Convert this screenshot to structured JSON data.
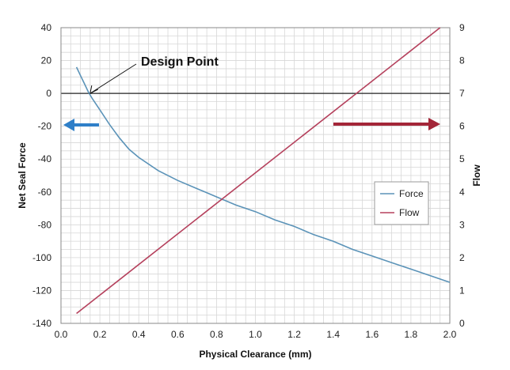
{
  "chart_data": {
    "type": "line",
    "xlabel": "Physical Clearance (mm)",
    "ylabel_left": "Net Seal Force",
    "ylabel_right": "Flow",
    "xlim": [
      0.0,
      2.0
    ],
    "ylim_left": [
      -140,
      40
    ],
    "ylim_right": [
      0,
      9
    ],
    "x_ticks": [
      "0.0",
      "0.2",
      "0.4",
      "0.6",
      "0.8",
      "1.0",
      "1.2",
      "1.4",
      "1.6",
      "1.8",
      "2.0"
    ],
    "y_left_ticks": [
      "40",
      "20",
      "0",
      "-20",
      "-40",
      "-60",
      "-80",
      "-100",
      "-120",
      "-140"
    ],
    "y_right_ticks": [
      "9",
      "8",
      "7",
      "6",
      "5",
      "4",
      "3",
      "2",
      "1",
      "0"
    ],
    "grid": true,
    "legend_position": "right",
    "series": [
      {
        "name": "Force",
        "axis": "left",
        "color": "#5b93b8",
        "x": [
          0.08,
          0.1,
          0.12,
          0.14,
          0.16,
          0.2,
          0.25,
          0.3,
          0.35,
          0.4,
          0.5,
          0.6,
          0.7,
          0.8,
          0.9,
          1.0,
          1.1,
          1.2,
          1.3,
          1.4,
          1.5,
          1.6,
          1.7,
          1.8,
          1.9,
          2.0
        ],
        "y": [
          16,
          11,
          6,
          1,
          -3,
          -10,
          -19,
          -27,
          -34,
          -39,
          -47,
          -53,
          -58,
          -63,
          -68,
          -72,
          -77,
          -81,
          -86,
          -90,
          -95,
          -99,
          -103,
          -107,
          -111,
          -115
        ]
      },
      {
        "name": "Flow",
        "axis": "right",
        "color": "#b5415d",
        "x": [
          0.08,
          1.95
        ],
        "y": [
          0.3,
          9.0
        ]
      }
    ],
    "annotations": [
      {
        "text": "Design Point",
        "x": 0.15,
        "y": 0
      }
    ],
    "arrows": [
      {
        "direction": "left",
        "color": "#2f7fc8",
        "refers_to": "Net Seal Force"
      },
      {
        "direction": "right",
        "color": "#a32638",
        "refers_to": "Flow"
      }
    ]
  }
}
